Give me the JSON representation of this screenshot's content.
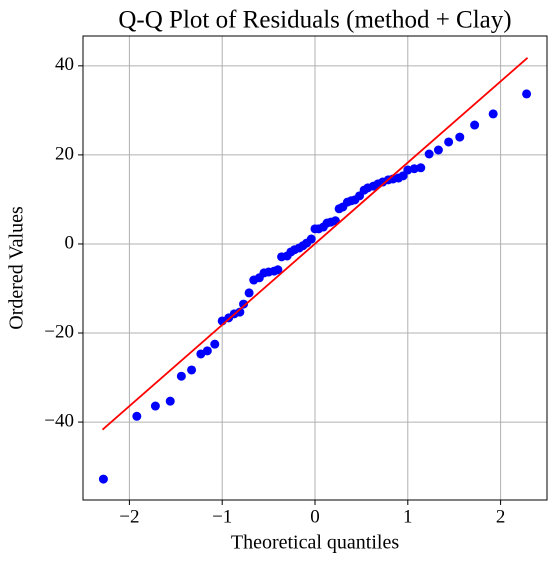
{
  "chart_data": {
    "type": "scatter",
    "title": "Q-Q Plot of Residuals (method + Clay)",
    "x_label": "Theoretical quantiles",
    "y_label": "Ordered Values",
    "xlim": [
      -2.5,
      2.5
    ],
    "ylim": [
      -57.5,
      46.7
    ],
    "xticks": [
      {
        "value": -2,
        "label": "−2"
      },
      {
        "value": -1,
        "label": "−1"
      },
      0,
      1,
      2
    ],
    "yticks": [
      {
        "value": -40,
        "label": "−40"
      },
      {
        "value": -20,
        "label": "−20"
      },
      0,
      20,
      40
    ],
    "grid": true,
    "points": {
      "color": "#0000ff",
      "x": [
        -2.28,
        -1.92,
        -1.72,
        -1.56,
        -1.44,
        -1.33,
        -1.23,
        -1.16,
        -1.08,
        -1.0,
        -0.93,
        -0.87,
        -0.81,
        -0.77,
        -0.71,
        -0.66,
        -0.6,
        -0.55,
        -0.5,
        -0.44,
        -0.4,
        -0.36,
        -0.3,
        -0.26,
        -0.22,
        -0.17,
        -0.13,
        -0.09,
        -0.04,
        0,
        0.04,
        0.09,
        0.13,
        0.17,
        0.22,
        0.26,
        0.3,
        0.35,
        0.39,
        0.43,
        0.48,
        0.53,
        0.57,
        0.63,
        0.68,
        0.73,
        0.79,
        0.84,
        0.9,
        0.95,
        1.0,
        1.07,
        1.14,
        1.23,
        1.33,
        1.44,
        1.56,
        1.72,
        1.92,
        2.28
      ],
      "values": [
        -52.8,
        -38.7,
        -36.4,
        -35.3,
        -29.7,
        -28.3,
        -24.7,
        -24.0,
        -22.5,
        -17.3,
        -16.6,
        -15.7,
        -15.3,
        -13.5,
        -11.0,
        -8.1,
        -7.6,
        -6.5,
        -6.3,
        -6.1,
        -5.8,
        -2.9,
        -2.7,
        -1.8,
        -1.3,
        -0.9,
        -0.4,
        0.2,
        1.1,
        3.4,
        3.4,
        3.8,
        4.7,
        4.9,
        5.2,
        7.9,
        8.3,
        9.4,
        9.7,
        9.9,
        10.8,
        12.1,
        12.6,
        13.0,
        13.5,
        13.9,
        14.4,
        14.6,
        14.8,
        15.3,
        16.6,
        16.9,
        17.1,
        20.2,
        21.1,
        22.9,
        24.0,
        26.7,
        29.2,
        33.7
      ]
    },
    "fit_line": {
      "color": "#ff0000",
      "x": [
        -2.29,
        2.29
      ],
      "values": [
        -41.7,
        41.8
      ]
    }
  }
}
